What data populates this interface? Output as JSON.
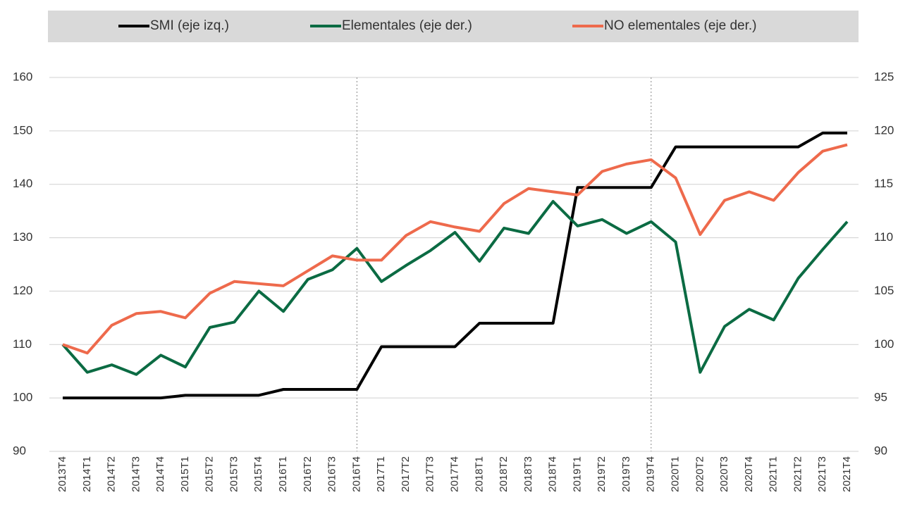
{
  "chart_data": {
    "type": "line",
    "categories": [
      "2013T4",
      "2014T1",
      "2014T2",
      "2014T3",
      "2014T4",
      "2015T1",
      "2015T2",
      "2015T3",
      "2015T4",
      "2016T1",
      "2016T2",
      "2016T3",
      "2016T4",
      "2017T1",
      "2017T2",
      "2017T3",
      "2017T4",
      "2018T1",
      "2018T2",
      "2018T3",
      "2018T4",
      "2019T1",
      "2019T2",
      "2019T3",
      "2019T4",
      "2020T1",
      "2020T2",
      "2020T3",
      "2020T4",
      "2021T1",
      "2021T2",
      "2021T3",
      "2021T4"
    ],
    "series": [
      {
        "name": "SMI (eje izq.)",
        "color": "#000000",
        "axis": "y",
        "values": [
          100,
          100,
          100,
          100,
          100,
          100.5,
          100.5,
          100.5,
          100.5,
          101.6,
          101.6,
          101.6,
          101.6,
          109.6,
          109.6,
          109.6,
          109.6,
          114,
          114,
          114,
          114,
          139.4,
          139.4,
          139.4,
          139.4,
          147,
          147,
          147,
          147,
          147,
          147,
          149.6,
          149.6
        ]
      },
      {
        "name": "Elementales (eje der.)",
        "color": "#0b6b43",
        "axis": "y2",
        "values": [
          100,
          97.4,
          98.1,
          97.2,
          99.0,
          97.9,
          101.6,
          102.1,
          105.0,
          103.1,
          106.1,
          107.0,
          109.0,
          105.9,
          107.4,
          108.8,
          110.5,
          107.8,
          110.9,
          110.4,
          113.4,
          111.1,
          111.7,
          110.4,
          111.5,
          109.6,
          97.4,
          101.7,
          103.3,
          102.3,
          106.2,
          108.9,
          111.5
        ]
      },
      {
        "name": "NO elementales (eje der.)",
        "color": "#ee6a4c",
        "axis": "y2",
        "values": [
          100,
          99.2,
          101.8,
          102.9,
          103.1,
          102.5,
          104.8,
          105.9,
          105.7,
          105.5,
          106.9,
          108.3,
          107.9,
          107.9,
          110.2,
          111.5,
          111.0,
          110.6,
          113.2,
          114.6,
          114.3,
          114.0,
          116.2,
          116.9,
          117.3,
          115.6,
          110.3,
          113.5,
          114.3,
          113.5,
          116.1,
          118.1,
          118.7
        ]
      }
    ],
    "ylim": [
      90,
      160
    ],
    "yticks": [
      90,
      100,
      110,
      120,
      130,
      140,
      150,
      160
    ],
    "y2lim": [
      90,
      125
    ],
    "y2ticks": [
      90,
      95,
      100,
      105,
      110,
      115,
      120,
      125
    ],
    "grid": true,
    "legend": "top",
    "reference_lines": [
      "2016T4",
      "2019T4"
    ]
  }
}
